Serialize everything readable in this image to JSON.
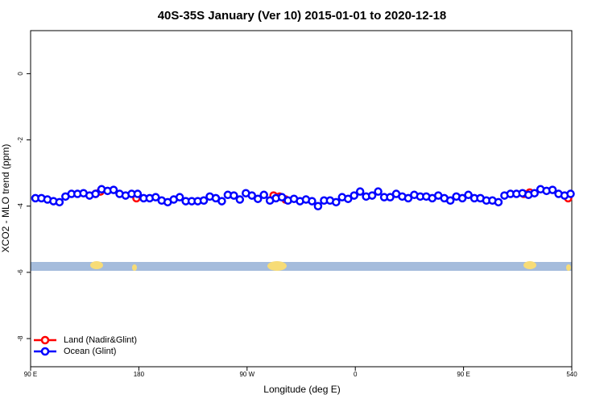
{
  "chart_data": {
    "type": "line",
    "title": "40S-35S January (Ver 10)   2015-01-01 to 2020-12-18",
    "x_label": "Longitude (deg E)",
    "y_label": "XCO2 - MLO trend (ppm)",
    "xlim": [
      90,
      540
    ],
    "ylim": [
      -8.85,
      1.3
    ],
    "xticks": [
      {
        "value": 90,
        "label": "90 E"
      },
      180,
      {
        "value": 270,
        "label": "90 W"
      },
      {
        "value": 360,
        "label": "0"
      },
      {
        "value": 450,
        "label": "90 E"
      },
      540
    ],
    "yticks": [
      0,
      -2,
      -4,
      -6,
      -8
    ],
    "legend": "bottom-left",
    "series": [
      {
        "name": "Land (Nadir&Glint)",
        "color": "#ff0000",
        "x": [
          144,
          148,
          178,
          292,
          297,
          302,
          500,
          505,
          537
        ],
        "values": [
          -3.63,
          -3.56,
          -3.76,
          -3.68,
          -3.71,
          -3.8,
          -3.63,
          -3.59,
          -3.76
        ]
      },
      {
        "name": "Ocean (Glint)",
        "color": "#0000ff",
        "x": [
          94,
          99,
          104,
          109,
          114,
          119,
          124,
          129,
          134,
          139,
          144,
          149,
          154,
          159,
          164,
          169,
          174,
          179,
          184,
          189,
          194,
          199,
          204,
          209,
          214,
          219,
          224,
          229,
          234,
          239,
          244,
          249,
          254,
          259,
          264,
          269,
          274,
          279,
          284,
          289,
          294,
          299,
          304,
          309,
          314,
          319,
          324,
          329,
          334,
          339,
          344,
          349,
          354,
          359,
          364,
          369,
          374,
          379,
          384,
          389,
          394,
          399,
          404,
          409,
          414,
          419,
          424,
          429,
          434,
          439,
          444,
          449,
          454,
          459,
          464,
          469,
          474,
          479,
          484,
          489,
          494,
          499,
          504,
          509,
          514,
          519,
          524,
          529,
          534,
          539
        ],
        "values": [
          -3.76,
          -3.76,
          -3.8,
          -3.85,
          -3.88,
          -3.71,
          -3.63,
          -3.63,
          -3.61,
          -3.68,
          -3.63,
          -3.49,
          -3.54,
          -3.51,
          -3.63,
          -3.68,
          -3.63,
          -3.63,
          -3.76,
          -3.76,
          -3.73,
          -3.83,
          -3.88,
          -3.8,
          -3.73,
          -3.85,
          -3.85,
          -3.85,
          -3.83,
          -3.71,
          -3.76,
          -3.85,
          -3.66,
          -3.68,
          -3.8,
          -3.61,
          -3.68,
          -3.78,
          -3.66,
          -3.83,
          -3.76,
          -3.73,
          -3.83,
          -3.78,
          -3.85,
          -3.8,
          -3.85,
          -4.0,
          -3.83,
          -3.83,
          -3.88,
          -3.73,
          -3.78,
          -3.68,
          -3.56,
          -3.71,
          -3.68,
          -3.56,
          -3.73,
          -3.73,
          -3.63,
          -3.71,
          -3.76,
          -3.66,
          -3.71,
          -3.71,
          -3.76,
          -3.68,
          -3.76,
          -3.83,
          -3.71,
          -3.76,
          -3.66,
          -3.76,
          -3.76,
          -3.83,
          -3.83,
          -3.88,
          -3.68,
          -3.63,
          -3.63,
          -3.61,
          -3.66,
          -3.61,
          -3.49,
          -3.54,
          -3.51,
          -3.63,
          -3.68,
          -3.63
        ]
      }
    ]
  }
}
